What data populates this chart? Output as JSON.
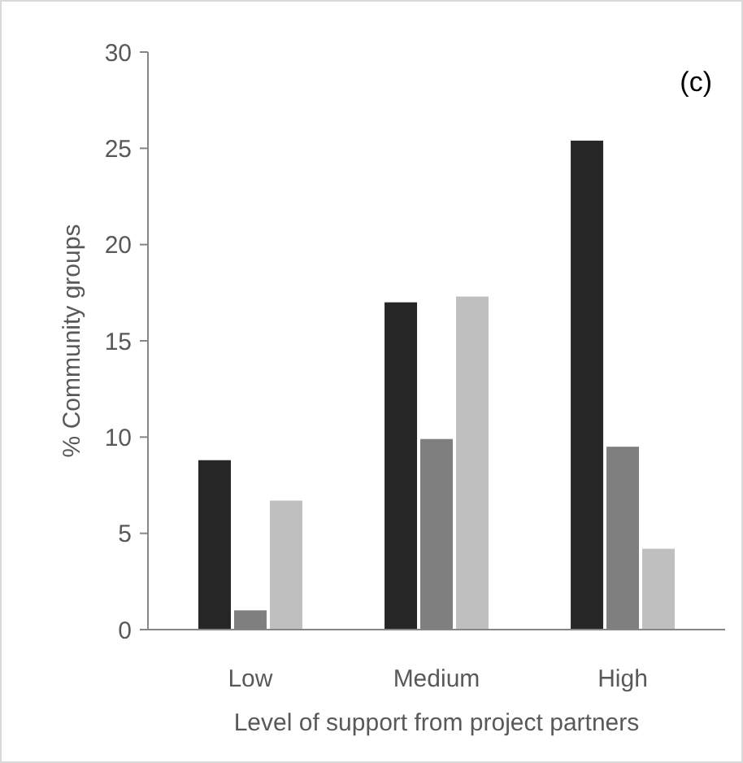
{
  "chart_data": {
    "type": "bar",
    "xlabel": "Level of support from project partners",
    "ylabel": "% Community groups",
    "annotations": [
      "(c)"
    ],
    "categories": [
      "Low",
      "Medium",
      "High"
    ],
    "series": [
      {
        "color": "#262626",
        "values": [
          8.8,
          17.0,
          25.4
        ]
      },
      {
        "color": "#7f7f7f",
        "values": [
          1.0,
          9.9,
          9.5
        ]
      },
      {
        "color": "#bfbfbf",
        "values": [
          6.7,
          17.3,
          4.2
        ]
      }
    ],
    "ylim": [
      0,
      30
    ],
    "yticks": [
      0,
      5,
      10,
      15,
      20,
      25,
      30
    ]
  }
}
